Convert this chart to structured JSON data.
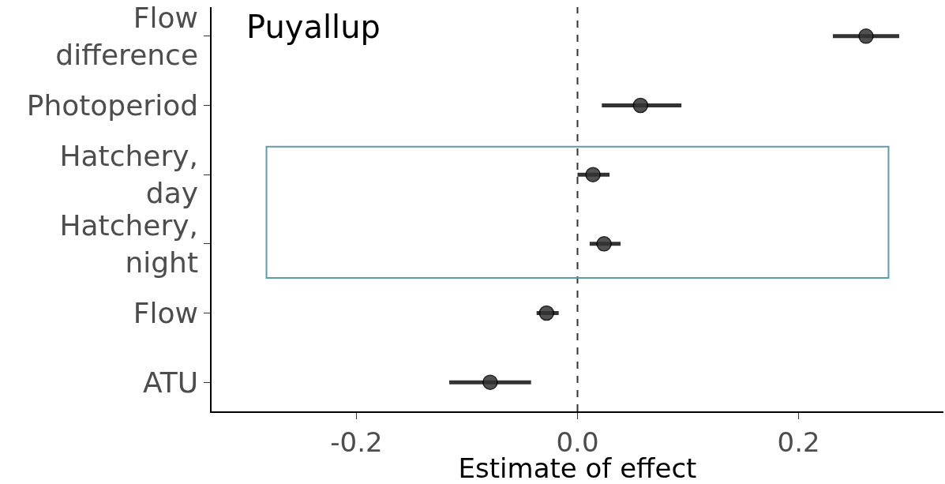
{
  "chart_data": {
    "type": "scatter",
    "title": "Puyallup",
    "xlabel": "Estimate of effect",
    "categories": [
      "Flow\ndifference",
      "Photoperiod",
      "Hatchery,\nday",
      "Hatchery,\nnight",
      "Flow",
      "ATU"
    ],
    "series": [
      {
        "color": "#333333",
        "values": [
          0.261,
          0.057,
          0.014,
          0.024,
          -0.028,
          -0.079
        ],
        "errors": [
          [
            0.231,
            0.291
          ],
          [
            0.022,
            0.094
          ],
          [
            0.0,
            0.029
          ],
          [
            0.011,
            0.039
          ],
          [
            -0.037,
            -0.017
          ],
          [
            -0.116,
            -0.042
          ]
        ]
      }
    ],
    "orientation": "horizontal",
    "marker": "circle",
    "xlim": [
      -0.331,
      0.331
    ],
    "xticks": [
      {
        "value": -0.2,
        "label": "-0.2"
      },
      {
        "value": 0,
        "label": "0.0"
      },
      {
        "value": 0.2,
        "label": "0.2"
      }
    ],
    "ref_lines": [
      {
        "axis": "x",
        "value": 0,
        "line_style": "dashed",
        "color": "#333333"
      }
    ],
    "grid": false
  }
}
